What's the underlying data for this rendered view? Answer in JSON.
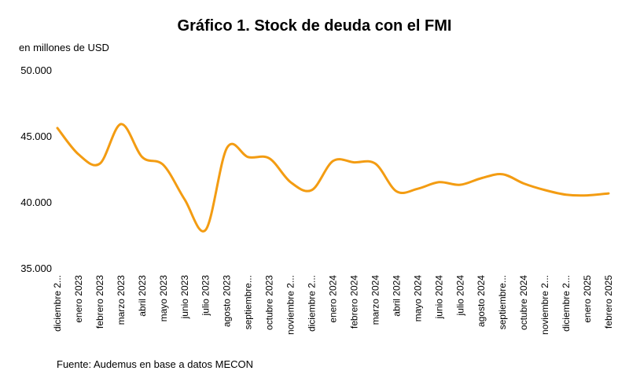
{
  "chart_data": {
    "type": "line",
    "title": "Gráfico 1. Stock de deuda con el FMI",
    "ylabel": "en millones de USD",
    "ylim": [
      35000,
      50000
    ],
    "yticks": [
      "50.000",
      "45.000",
      "40.000",
      "35.000"
    ],
    "ytick_values": [
      50000,
      45000,
      40000,
      35000
    ],
    "categories": [
      "diciembre 2...",
      "enero 2023",
      "febrero 2023",
      "marzo 2023",
      "abril 2023",
      "mayo 2023",
      "junio 2023",
      "julio 2023",
      "agosto 2023",
      "septiembre...",
      "octubre 2023",
      "noviembre 2...",
      "diciembre 2...",
      "enero 2024",
      "febrero 2024",
      "marzo 2024",
      "abril 2024",
      "mayo 2024",
      "junio 2024",
      "julio 2024",
      "agosto 2024",
      "septiembre...",
      "octubre 2024",
      "noviembre 2...",
      "diciembre 2...",
      "enero 2025",
      "febrero 2025"
    ],
    "series": [
      {
        "values": [
          45600,
          43600,
          42900,
          45900,
          43400,
          42800,
          40200,
          37900,
          44100,
          43400,
          43300,
          41500,
          40900,
          43100,
          43000,
          42900,
          40800,
          41000,
          41500,
          41300,
          41800,
          42100,
          41400,
          40900,
          40550,
          40500,
          40650
        ],
        "color": "#f39c12"
      }
    ],
    "grid": false,
    "source_note": "Fuente: Audemus en base a datos MECON"
  }
}
